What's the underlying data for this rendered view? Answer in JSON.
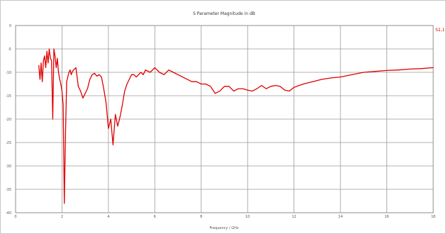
{
  "chart_data": {
    "type": "line",
    "title": "S Parameter Magnitude in dB",
    "xlabel": "Frequency / GHz",
    "ylabel": "",
    "xlim": [
      0,
      18
    ],
    "ylim": [
      -40,
      0
    ],
    "x_ticks": [
      0,
      2,
      4,
      6,
      8,
      10,
      12,
      14,
      16,
      18
    ],
    "y_ticks": [
      0,
      -5,
      -10,
      -15,
      -20,
      -25,
      -30,
      -35,
      -40
    ],
    "grid": true,
    "legend_position": "top-right",
    "series": [
      {
        "name": "S1,1",
        "color": "#e00000",
        "x": [
          1.0,
          1.05,
          1.1,
          1.15,
          1.2,
          1.25,
          1.3,
          1.35,
          1.4,
          1.45,
          1.5,
          1.55,
          1.6,
          1.65,
          1.7,
          1.75,
          1.8,
          1.85,
          1.9,
          1.95,
          2.0,
          2.05,
          2.1,
          2.15,
          2.2,
          2.25,
          2.3,
          2.35,
          2.4,
          2.45,
          2.5,
          2.6,
          2.7,
          2.8,
          2.9,
          3.0,
          3.1,
          3.2,
          3.3,
          3.4,
          3.5,
          3.6,
          3.7,
          3.8,
          3.9,
          4.0,
          4.1,
          4.2,
          4.3,
          4.4,
          4.5,
          4.6,
          4.7,
          4.8,
          4.9,
          5.0,
          5.1,
          5.2,
          5.3,
          5.4,
          5.5,
          5.6,
          5.8,
          6.0,
          6.2,
          6.4,
          6.6,
          6.8,
          7.0,
          7.2,
          7.4,
          7.6,
          7.8,
          8.0,
          8.2,
          8.4,
          8.6,
          8.8,
          9.0,
          9.2,
          9.4,
          9.6,
          9.8,
          10.0,
          10.2,
          10.4,
          10.6,
          10.8,
          11.0,
          11.2,
          11.4,
          11.6,
          11.8,
          12.0,
          12.4,
          12.8,
          13.2,
          13.6,
          14.0,
          14.5,
          15.0,
          15.5,
          16.0,
          16.5,
          17.0,
          17.5,
          18.0
        ],
        "y": [
          -8.5,
          -11.5,
          -8.0,
          -12.0,
          -7.5,
          -6.5,
          -9.0,
          -5.5,
          -8.0,
          -5.0,
          -7.0,
          -7.5,
          -20.0,
          -5.0,
          -6.5,
          -9.0,
          -7.0,
          -10.0,
          -11.5,
          -12.5,
          -14.0,
          -17.0,
          -38.0,
          -23.0,
          -12.0,
          -11.0,
          -10.0,
          -9.5,
          -10.5,
          -9.8,
          -9.5,
          -9.0,
          -13.0,
          -14.0,
          -15.5,
          -14.5,
          -13.5,
          -11.5,
          -10.5,
          -10.2,
          -10.8,
          -10.5,
          -11.0,
          -13.5,
          -16.5,
          -22.0,
          -20.0,
          -25.5,
          -19.0,
          -21.5,
          -19.5,
          -17.0,
          -14.0,
          -12.5,
          -11.5,
          -10.5,
          -10.5,
          -11.0,
          -10.5,
          -10.0,
          -10.5,
          -9.5,
          -10.0,
          -9.0,
          -10.0,
          -10.5,
          -9.5,
          -10.0,
          -10.5,
          -11.0,
          -11.5,
          -12.0,
          -12.0,
          -12.5,
          -12.5,
          -13.0,
          -14.5,
          -14.0,
          -13.0,
          -13.0,
          -14.0,
          -13.5,
          -13.5,
          -13.8,
          -14.0,
          -13.5,
          -12.8,
          -13.5,
          -13.0,
          -12.8,
          -13.0,
          -13.8,
          -14.0,
          -13.2,
          -12.5,
          -12.0,
          -11.5,
          -11.2,
          -11.0,
          -10.5,
          -10.0,
          -9.8,
          -9.6,
          -9.5,
          -9.3,
          -9.2,
          -9.0
        ]
      }
    ]
  }
}
